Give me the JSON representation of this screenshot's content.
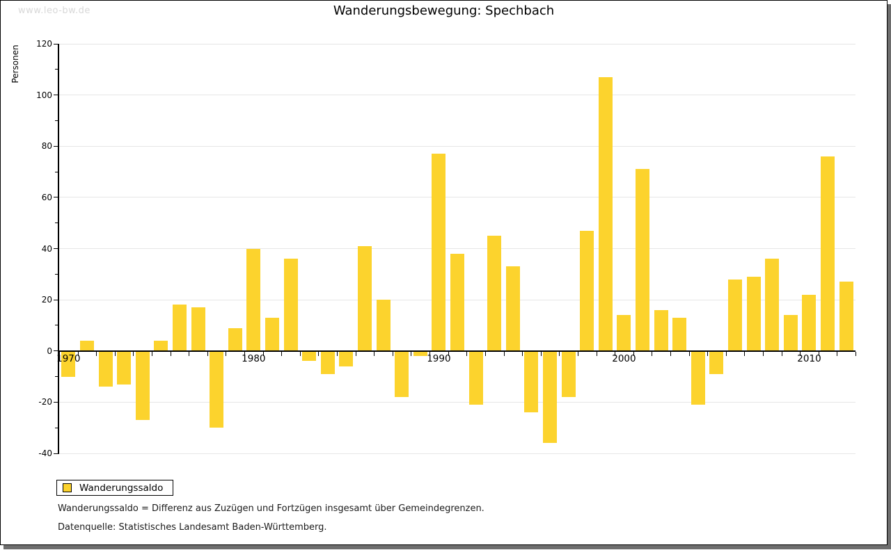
{
  "watermark": "www.leo-bw.de",
  "title": "Wanderungsbewegung: Spechbach",
  "legend": {
    "label": "Wanderungssaldo",
    "swatch_color": "#fcd32d"
  },
  "footnotes": {
    "definition": "Wanderungssaldo = Differenz aus Zuzügen und Fortzügen insgesamt über Gemeindegrenzen.",
    "source": "Datenquelle: Statistisches Landesamt Baden-Württemberg."
  },
  "colors": {
    "bar": "#fcd32d",
    "grid": "#e6e6e6",
    "axis": "#000000",
    "text": "#000000",
    "watermark": "#d8d8d8",
    "frame_shadow": "#6e6e6e",
    "background": "#ffffff"
  },
  "chart_data": {
    "type": "bar",
    "title": "Wanderungsbewegung: Spechbach",
    "xlabel": "",
    "ylabel": "Personen",
    "x": [
      1970,
      1971,
      1972,
      1973,
      1974,
      1975,
      1976,
      1977,
      1978,
      1979,
      1980,
      1981,
      1982,
      1983,
      1984,
      1985,
      1986,
      1987,
      1988,
      1989,
      1990,
      1991,
      1992,
      1993,
      1994,
      1995,
      1996,
      1997,
      1998,
      1999,
      2000,
      2001,
      2002,
      2003,
      2004,
      2005,
      2006,
      2007,
      2008,
      2009,
      2010,
      2011,
      2012
    ],
    "series": [
      {
        "name": "Wanderungssaldo",
        "color": "#fcd32d",
        "values": [
          -10,
          4,
          -14,
          -13,
          -27,
          4,
          18,
          17,
          -30,
          9,
          40,
          13,
          36,
          -4,
          -9,
          -6,
          41,
          20,
          -18,
          -2,
          77,
          38,
          -21,
          45,
          33,
          -24,
          -36,
          -18,
          47,
          107,
          14,
          71,
          16,
          13,
          -21,
          -9,
          28,
          29,
          36,
          14,
          22,
          76,
          27
        ]
      }
    ],
    "ylim": [
      -40,
      120
    ],
    "ytick_step": 20,
    "ytick_minor_step": 10,
    "xtick_labels": [
      "1970",
      "1980",
      "1990",
      "2000",
      "2010"
    ],
    "xtick_label_years": [
      1970,
      1980,
      1990,
      2000,
      2010
    ],
    "grid": true,
    "legend_position": "bottom-left"
  }
}
